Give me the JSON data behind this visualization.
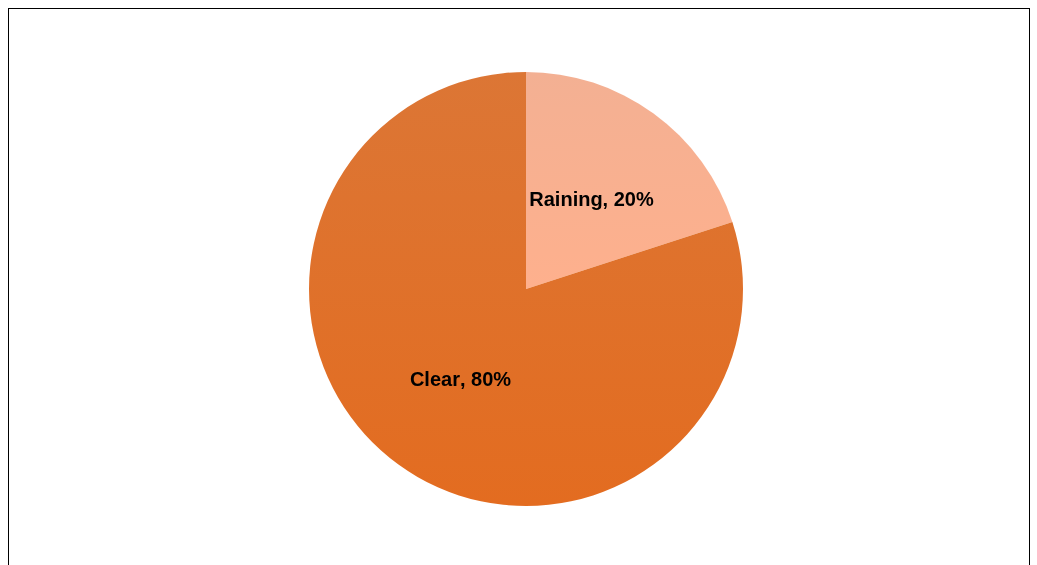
{
  "chart_data": {
    "type": "pie",
    "categories": [
      "Raining",
      "Clear"
    ],
    "values": [
      20,
      80
    ],
    "value_labels": [
      ", 20%",
      ", 80%"
    ],
    "colors": [
      "#f2a887",
      "#d9671f"
    ]
  }
}
